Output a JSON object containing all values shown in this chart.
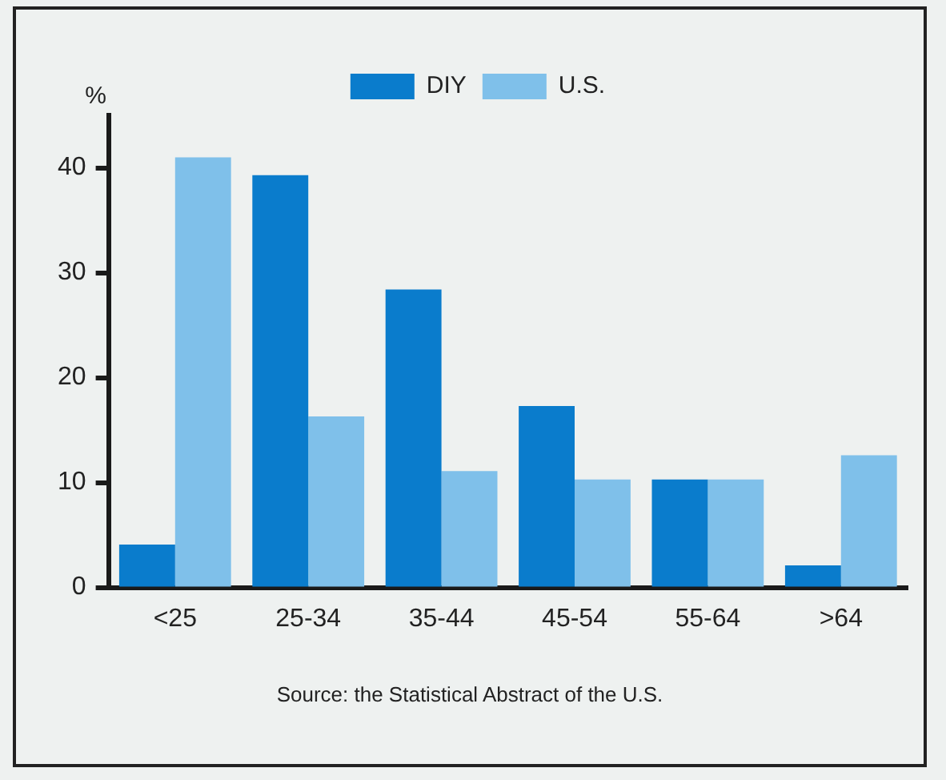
{
  "chart_data": {
    "type": "bar",
    "ylabel": "%",
    "categories": [
      "<25",
      "25-34",
      "35-44",
      "45-54",
      "55-64",
      ">64"
    ],
    "series": [
      {
        "name": "DIY",
        "color": "#0a7ccc",
        "values": [
          4.1,
          39.3,
          28.4,
          17.3,
          10.3,
          2.1
        ]
      },
      {
        "name": "U.S.",
        "color": "#7fc0ea",
        "values": [
          41.0,
          16.3,
          11.1,
          10.3,
          10.3,
          12.6
        ]
      }
    ],
    "ylim": [
      0,
      45
    ],
    "yticks": [
      0,
      10,
      20,
      30,
      40
    ],
    "grid": false,
    "legend": "top",
    "annotations": [
      "Source: the Statistical Abstract of the U.S."
    ]
  }
}
